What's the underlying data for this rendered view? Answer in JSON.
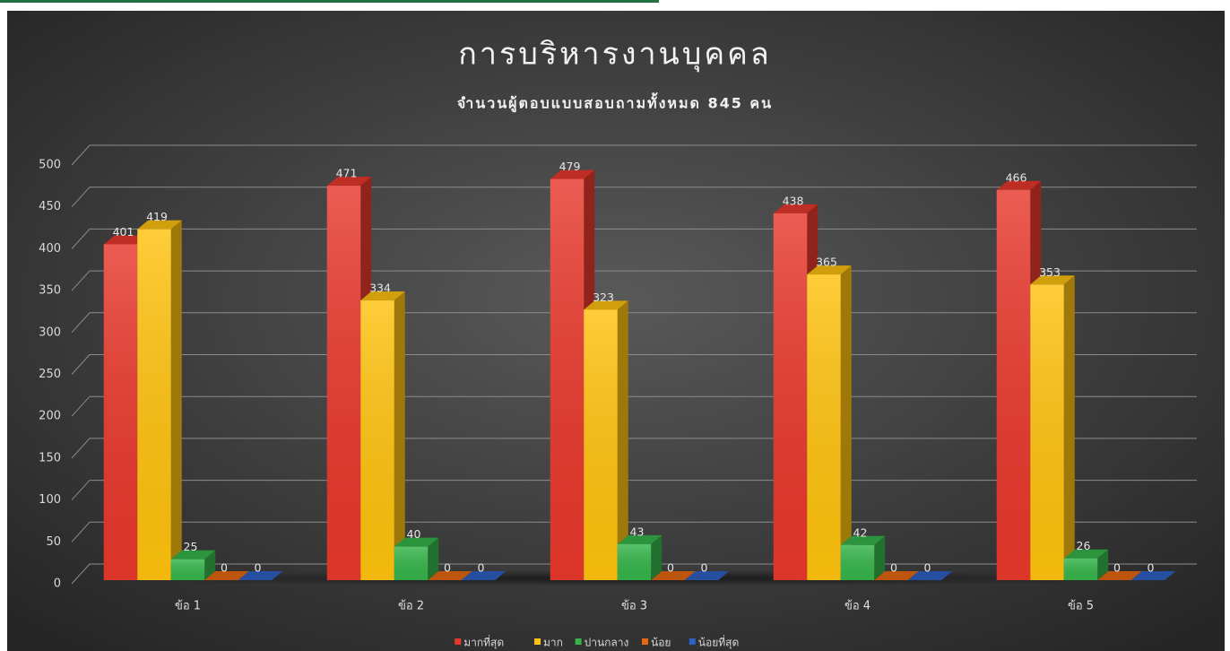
{
  "chart_data": {
    "type": "bar3d",
    "title": "การบริหารงานบุคคล",
    "subtitle": "จำนวนผู้ตอบแบบสอบถามทั้งหมด 845 คน",
    "categories": [
      "ข้อ 1",
      "ข้อ 2",
      "ข้อ 3",
      "ข้อ 4",
      "ข้อ 5"
    ],
    "series": [
      {
        "name": "มากที่สุด",
        "color": "#e8382c",
        "values": [
          401,
          471,
          479,
          438,
          466
        ]
      },
      {
        "name": "มาก",
        "color": "#ffc20e",
        "values": [
          419,
          334,
          323,
          365,
          353
        ]
      },
      {
        "name": "ปานกลาง",
        "color": "#35b44a",
        "values": [
          25,
          40,
          43,
          42,
          26
        ]
      },
      {
        "name": "น้อย",
        "color": "#e8680f",
        "values": [
          0,
          0,
          0,
          0,
          0
        ]
      },
      {
        "name": "น้อยที่สุด",
        "color": "#2e5fc4",
        "values": [
          0,
          0,
          0,
          0,
          0
        ]
      }
    ],
    "ylim": [
      0,
      500
    ],
    "yticks": [
      0,
      50,
      100,
      150,
      200,
      250,
      300,
      350,
      400,
      450,
      500
    ],
    "grid": true,
    "legend": "bottom"
  }
}
